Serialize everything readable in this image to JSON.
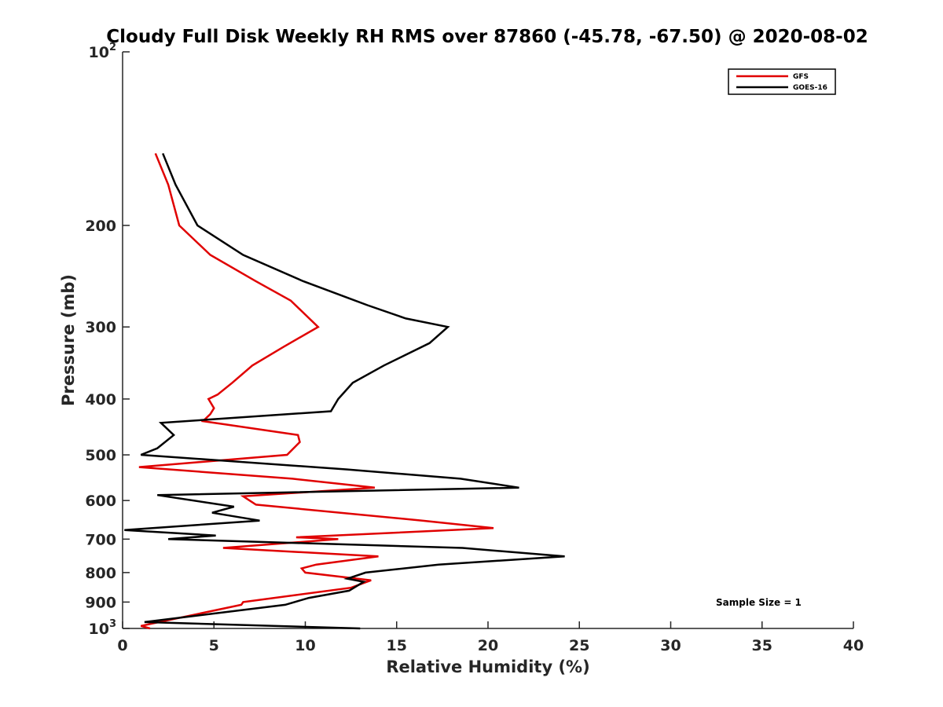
{
  "chart_data": {
    "type": "line",
    "title": "Cloudy Full Disk Weekly RH RMS over 87860 (-45.78, -67.50) @ 2020-08-02",
    "xlabel": "Relative Humidity (%)",
    "ylabel": "Pressure (mb)",
    "xlim": [
      0,
      40
    ],
    "ylim": [
      100,
      1000
    ],
    "y_scale": "log",
    "y_reversed": true,
    "grid": false,
    "legend_position": "top-right",
    "annotation": "Sample Size = 1",
    "x_ticks": [
      "0",
      "5",
      "10",
      "15",
      "20",
      "25",
      "30",
      "35",
      "40"
    ],
    "x_tick_values": [
      0,
      5,
      10,
      15,
      20,
      25,
      30,
      35,
      40
    ],
    "y_ticks": [
      {
        "value": 100,
        "base": "10",
        "exp": "2"
      },
      {
        "value": 200,
        "label": "200"
      },
      {
        "value": 300,
        "label": "300"
      },
      {
        "value": 400,
        "label": "400"
      },
      {
        "value": 500,
        "label": "500"
      },
      {
        "value": 600,
        "label": "600"
      },
      {
        "value": 700,
        "label": "700"
      },
      {
        "value": 800,
        "label": "800"
      },
      {
        "value": 900,
        "label": "900"
      },
      {
        "value": 1000,
        "base": "10",
        "exp": "3"
      }
    ],
    "series": [
      {
        "name": "GFS",
        "color": "#e00000",
        "points": [
          [
            1.8,
            150
          ],
          [
            2.5,
            170
          ],
          [
            3.1,
            200
          ],
          [
            4.8,
            225
          ],
          [
            7.3,
            250
          ],
          [
            9.2,
            270
          ],
          [
            10.7,
            300
          ],
          [
            8.8,
            325
          ],
          [
            7.1,
            350
          ],
          [
            6.0,
            375
          ],
          [
            5.2,
            393
          ],
          [
            4.7,
            400
          ],
          [
            5.0,
            415
          ],
          [
            4.8,
            425
          ],
          [
            4.4,
            437
          ],
          [
            9.6,
            462
          ],
          [
            9.7,
            475
          ],
          [
            9.0,
            500
          ],
          [
            0.9,
            525
          ],
          [
            9.3,
            550
          ],
          [
            13.8,
            570
          ],
          [
            6.6,
            590
          ],
          [
            7.3,
            610
          ],
          [
            16.4,
            650
          ],
          [
            20.3,
            670
          ],
          [
            9.5,
            695
          ],
          [
            11.8,
            700
          ],
          [
            5.5,
            725
          ],
          [
            14.0,
            750
          ],
          [
            10.6,
            775
          ],
          [
            9.8,
            787
          ],
          [
            10.0,
            800
          ],
          [
            13.6,
            825
          ],
          [
            12.5,
            850
          ],
          [
            6.6,
            900
          ],
          [
            6.5,
            910
          ],
          [
            1.0,
            990
          ],
          [
            1.5,
            1000
          ]
        ]
      },
      {
        "name": "GOES-16",
        "color": "#000000",
        "points": [
          [
            2.2,
            150
          ],
          [
            2.9,
            170
          ],
          [
            4.1,
            200
          ],
          [
            6.6,
            225
          ],
          [
            9.9,
            250
          ],
          [
            13.4,
            275
          ],
          [
            15.5,
            290
          ],
          [
            17.8,
            300
          ],
          [
            16.8,
            320
          ],
          [
            14.3,
            350
          ],
          [
            12.6,
            375
          ],
          [
            11.8,
            400
          ],
          [
            11.4,
            420
          ],
          [
            2.1,
            440
          ],
          [
            2.8,
            462
          ],
          [
            1.9,
            487
          ],
          [
            1.0,
            500
          ],
          [
            12.3,
            530
          ],
          [
            18.5,
            550
          ],
          [
            21.7,
            570
          ],
          [
            1.9,
            587
          ],
          [
            6.1,
            615
          ],
          [
            4.9,
            630
          ],
          [
            7.5,
            650
          ],
          [
            0.1,
            675
          ],
          [
            5.1,
            690
          ],
          [
            2.5,
            700
          ],
          [
            18.6,
            725
          ],
          [
            24.2,
            750
          ],
          [
            17.3,
            775
          ],
          [
            13.3,
            800
          ],
          [
            12.3,
            820
          ],
          [
            13.2,
            830
          ],
          [
            12.4,
            860
          ],
          [
            10.2,
            885
          ],
          [
            8.9,
            910
          ],
          [
            1.2,
            975
          ],
          [
            13.0,
            1000
          ]
        ]
      }
    ]
  }
}
